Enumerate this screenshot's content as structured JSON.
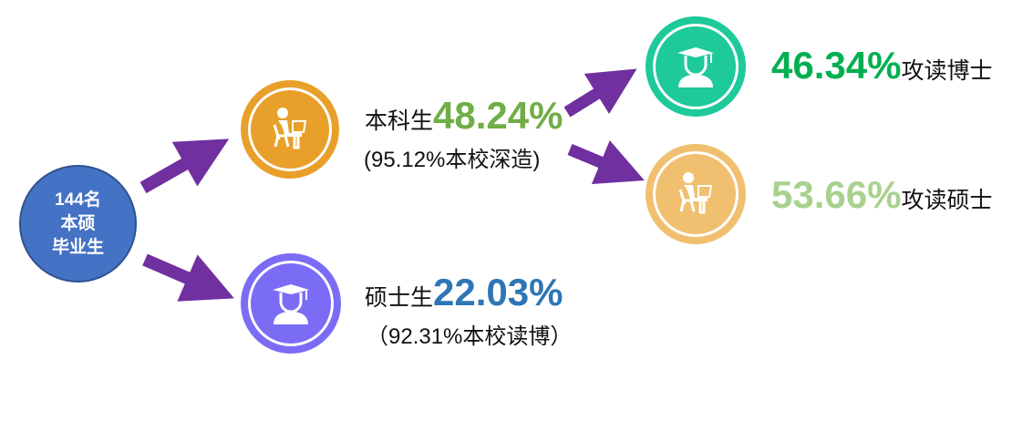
{
  "root": {
    "lines": [
      "144名",
      "本硕",
      "毕业生"
    ],
    "color": "#4472c4"
  },
  "undergrad": {
    "label": "本科生",
    "percent": "48.24%",
    "sub": "(95.12%本校深造)",
    "color": "#70ad47",
    "icon": "student-at-desk-icon",
    "icon_color": "#e8a02a"
  },
  "master": {
    "label": "硕士生",
    "percent": "22.03%",
    "sub": "（92.31%本校读博）",
    "color": "#2e75b6",
    "icon": "graduate-icon",
    "icon_color": "#7b6cf6"
  },
  "phd_path": {
    "percent": "46.34%",
    "label": "攻读博士",
    "color": "#00b050",
    "icon": "graduate-icon",
    "icon_color": "#1ec99a"
  },
  "master_path": {
    "percent": "53.66%",
    "label": "攻读硕士",
    "color": "#a9d18e",
    "icon": "student-at-desk-icon",
    "icon_color": "#f0c070"
  },
  "arrow_color": "#7030a0"
}
